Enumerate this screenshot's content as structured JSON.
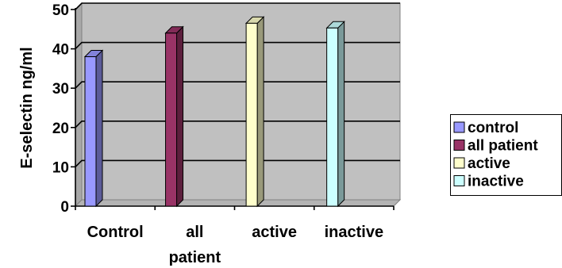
{
  "chart_data": {
    "type": "bar",
    "title": "",
    "xlabel": "",
    "ylabel": "E-selectin ng/ml",
    "ylim": [
      0,
      50
    ],
    "yticks": [
      0,
      10,
      20,
      30,
      40,
      50
    ],
    "grid": true,
    "three_d": true,
    "categories": [
      {
        "lines": [
          "Control"
        ]
      },
      {
        "lines": [
          "all",
          "patient"
        ]
      },
      {
        "lines": [
          "active"
        ]
      },
      {
        "lines": [
          "inactive"
        ]
      }
    ],
    "series": [
      {
        "name": "control",
        "color": "#9999FF",
        "category_index": 0,
        "value": 38
      },
      {
        "name": "all patient",
        "color": "#993366",
        "category_index": 1,
        "value": 44
      },
      {
        "name": "active",
        "color": "#FFFFCC",
        "category_index": 2,
        "value": 46.5
      },
      {
        "name": "inactive",
        "color": "#CCFFFF",
        "category_index": 3,
        "value": 45.3
      }
    ],
    "legend_position": "right",
    "plot_background": "#C0C0C0"
  }
}
